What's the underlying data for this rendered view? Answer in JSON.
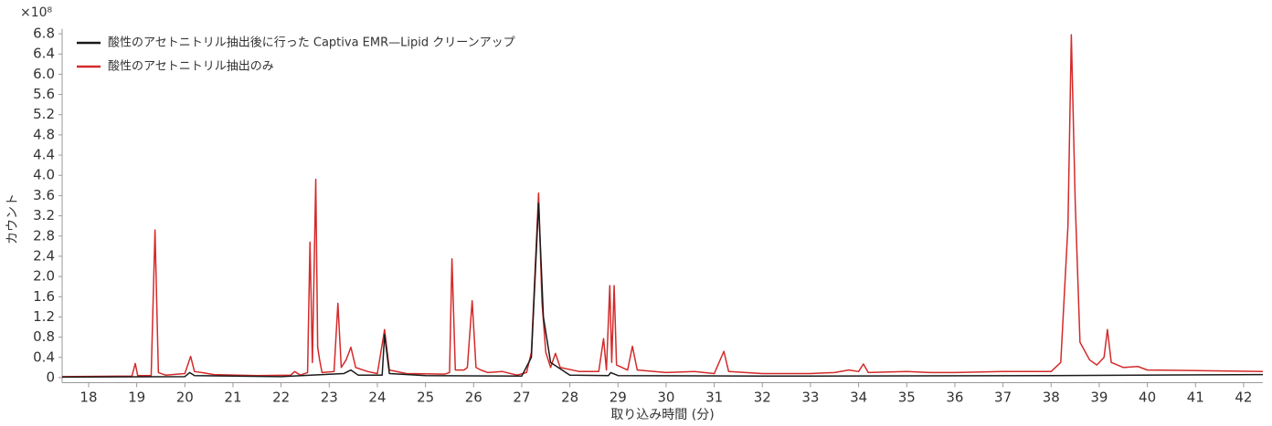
{
  "chart_data": {
    "type": "line",
    "y_multiplier": "×10⁸",
    "ylabel": "カウント",
    "xlabel": "取り込み時間 (分)",
    "xlim": [
      17.45,
      42.4
    ],
    "xticks": [
      18,
      19,
      20,
      21,
      22,
      23,
      24,
      25,
      26,
      27,
      28,
      29,
      30,
      31,
      32,
      33,
      34,
      35,
      36,
      37,
      38,
      39,
      40,
      41,
      42
    ],
    "ylim": [
      -0.1,
      6.9
    ],
    "yticks": [
      0,
      0.4,
      0.8,
      1.2,
      1.6,
      {
        "value": 2.0,
        "label": "2.0"
      },
      2.4,
      2.8,
      3.2,
      3.6,
      {
        "value": 4.0,
        "label": "4.0"
      },
      4.4,
      4.8,
      5.2,
      5.6,
      {
        "value": 6.0,
        "label": "6.0"
      },
      6.4,
      6.8
    ],
    "legend": "top-left",
    "series": [
      {
        "name": "酸性のアセトニトリル抽出後に行った Captiva EMR—Lipid クリーンアップ",
        "color": "#1a1a1a",
        "x": [
          17.45,
          20.0,
          20.1,
          20.2,
          22.0,
          23.3,
          23.45,
          23.6,
          24.1,
          24.15,
          24.25,
          25.0,
          27.0,
          27.2,
          27.35,
          27.45,
          27.6,
          28.0,
          28.8,
          28.85,
          29.0,
          32.0,
          38.0,
          42.4
        ],
        "values": [
          0.01,
          0.02,
          0.1,
          0.04,
          0.02,
          0.08,
          0.15,
          0.05,
          0.05,
          0.85,
          0.08,
          0.04,
          0.03,
          0.4,
          3.45,
          1.2,
          0.3,
          0.05,
          0.04,
          0.1,
          0.04,
          0.03,
          0.04,
          0.06
        ]
      },
      {
        "name": "酸性のアセトニトリル抽出のみ",
        "color": "#d42a2a",
        "x": [
          17.45,
          18.9,
          18.97,
          19.02,
          19.3,
          19.38,
          19.45,
          19.6,
          20.0,
          20.12,
          20.2,
          20.35,
          20.6,
          21.5,
          22.2,
          22.28,
          22.4,
          22.55,
          22.6,
          22.65,
          22.72,
          22.76,
          22.8,
          22.85,
          23.1,
          23.18,
          23.25,
          23.35,
          23.45,
          23.55,
          23.8,
          24.0,
          24.15,
          24.25,
          24.6,
          25.4,
          25.5,
          25.55,
          25.62,
          25.8,
          25.87,
          25.97,
          26.05,
          26.15,
          26.3,
          26.6,
          26.9,
          27.1,
          27.2,
          27.3,
          27.35,
          27.42,
          27.5,
          27.6,
          27.7,
          27.8,
          28.2,
          28.6,
          28.7,
          28.76,
          28.83,
          28.87,
          28.92,
          28.97,
          29.2,
          29.3,
          29.4,
          30.0,
          30.6,
          31.0,
          31.2,
          31.3,
          32.0,
          33.0,
          33.5,
          33.8,
          34.0,
          34.1,
          34.2,
          35.0,
          35.5,
          36.0,
          37.0,
          38.0,
          38.2,
          38.35,
          38.42,
          38.5,
          38.6,
          38.8,
          38.95,
          39.1,
          39.17,
          39.25,
          39.5,
          39.8,
          40.0,
          41.0,
          42.4
        ],
        "values": [
          0.02,
          0.03,
          0.28,
          0.04,
          0.04,
          2.92,
          0.1,
          0.05,
          0.08,
          0.42,
          0.12,
          0.1,
          0.06,
          0.04,
          0.05,
          0.12,
          0.05,
          0.1,
          2.68,
          0.3,
          3.92,
          0.6,
          0.35,
          0.1,
          0.12,
          1.47,
          0.2,
          0.35,
          0.6,
          0.2,
          0.12,
          0.08,
          0.95,
          0.15,
          0.08,
          0.07,
          0.1,
          2.35,
          0.15,
          0.15,
          0.2,
          1.52,
          0.2,
          0.15,
          0.1,
          0.12,
          0.05,
          0.1,
          0.5,
          2.6,
          3.65,
          1.5,
          0.5,
          0.2,
          0.48,
          0.2,
          0.12,
          0.12,
          0.77,
          0.15,
          1.82,
          0.3,
          1.82,
          0.25,
          0.15,
          0.62,
          0.15,
          0.1,
          0.12,
          0.08,
          0.52,
          0.12,
          0.08,
          0.08,
          0.1,
          0.15,
          0.12,
          0.27,
          0.1,
          0.12,
          0.1,
          0.1,
          0.12,
          0.12,
          0.3,
          3.0,
          6.78,
          3.5,
          0.7,
          0.35,
          0.25,
          0.4,
          0.95,
          0.3,
          0.2,
          0.22,
          0.15,
          0.14,
          0.12
        ]
      }
    ]
  }
}
